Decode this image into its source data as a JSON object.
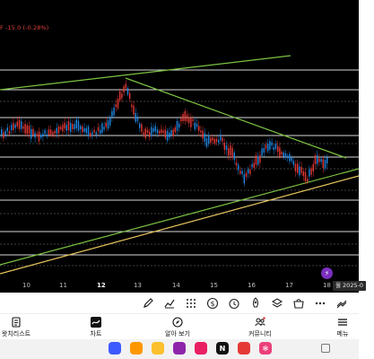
{
  "chart": {
    "price_change": "F -15.0 (-0.28%)",
    "x_ticks": [
      "10",
      "11",
      "12",
      "13",
      "14",
      "15",
      "16",
      "17",
      "18"
    ],
    "date_badge": "월 2025-0",
    "colors": {
      "bull": "#1e88e5",
      "bear": "#e53935",
      "trendline": "#7cc242",
      "support": "#e6c65c",
      "level": "#ffffff",
      "background": "#000000"
    }
  },
  "toolbar": {
    "tools": [
      "pencil-icon",
      "trend-chart-icon",
      "grid-icon",
      "dollar-icon",
      "rocket-icon",
      "alarm-icon",
      "layers-icon",
      "shop-icon",
      "more-icon",
      "lines-icon"
    ]
  },
  "nav": {
    "items": [
      {
        "label": "왓치리스트",
        "icon": "watchlist-icon"
      },
      {
        "label": "차트",
        "icon": "chart-icon"
      },
      {
        "label": "알아 보기",
        "icon": "compass-icon"
      },
      {
        "label": "커뮤니티",
        "icon": "community-icon"
      },
      {
        "label": "메뉴",
        "icon": "menu-icon"
      }
    ]
  },
  "dock": {
    "apps": [
      {
        "name": "app-blue",
        "color": "#3d5afe",
        "glyph": ""
      },
      {
        "name": "app-orange",
        "color": "#ff9800",
        "glyph": ""
      },
      {
        "name": "app-yellow",
        "color": "#fbc02d",
        "glyph": ""
      },
      {
        "name": "app-purple",
        "color": "#8e24aa",
        "glyph": ""
      },
      {
        "name": "app-pink",
        "color": "#e91e63",
        "glyph": ""
      },
      {
        "name": "netflix-icon",
        "color": "#111111",
        "glyph": "N"
      },
      {
        "name": "app-red",
        "color": "#e53935",
        "glyph": ""
      },
      {
        "name": "app-snow",
        "color": "#ec407a",
        "glyph": "✻"
      }
    ]
  }
}
